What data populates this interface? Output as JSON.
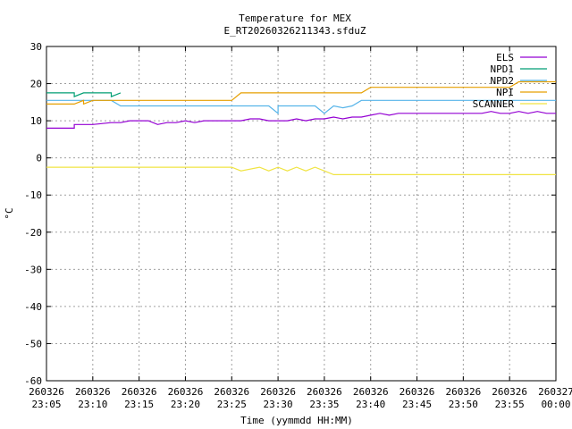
{
  "chart_data": {
    "type": "line",
    "title": "Temperature for MEX",
    "subtitle": "E_RT20260326211343.sfduZ",
    "xlabel": "Time (yymmdd HH:MM)",
    "ylabel": "°C",
    "ylim": [
      -60,
      30
    ],
    "xlim": [
      "2026-03-26 23:05",
      "2026-03-27 00:00"
    ],
    "yticks": [
      -60,
      -50,
      -40,
      -30,
      -20,
      -10,
      0,
      10,
      20,
      30
    ],
    "xticks": [
      {
        "date": "260326",
        "time": "23:05"
      },
      {
        "date": "260326",
        "time": "23:10"
      },
      {
        "date": "260326",
        "time": "23:15"
      },
      {
        "date": "260326",
        "time": "23:20"
      },
      {
        "date": "260326",
        "time": "23:25"
      },
      {
        "date": "260326",
        "time": "23:30"
      },
      {
        "date": "260326",
        "time": "23:35"
      },
      {
        "date": "260326",
        "time": "23:40"
      },
      {
        "date": "260326",
        "time": "23:45"
      },
      {
        "date": "260326",
        "time": "23:50"
      },
      {
        "date": "260326",
        "time": "23:55"
      },
      {
        "date": "260327",
        "time": "00:00"
      }
    ],
    "grid": true,
    "legend_position": "top-right",
    "series": [
      {
        "name": "ELS",
        "color": "#9400d3",
        "x": [
          "23:05",
          "23:08",
          "23:08",
          "23:09",
          "23:10",
          "23:12",
          "23:13",
          "23:14",
          "23:15",
          "23:16",
          "23:17",
          "23:18",
          "23:19",
          "23:20",
          "23:21",
          "23:22",
          "23:23",
          "23:24",
          "23:25",
          "23:26",
          "23:27",
          "23:28",
          "23:29",
          "23:30",
          "23:31",
          "23:32",
          "23:33",
          "23:34",
          "23:35",
          "23:36",
          "23:37",
          "23:38",
          "23:39",
          "23:40",
          "23:41",
          "23:42",
          "23:43",
          "23:44",
          "23:45",
          "23:46",
          "23:47",
          "23:48",
          "23:49",
          "23:50",
          "23:51",
          "23:52",
          "23:53",
          "23:54",
          "23:55",
          "23:56",
          "23:57",
          "23:58",
          "23:59",
          "00:00"
        ],
        "y": [
          8,
          8,
          9,
          9,
          9,
          9.5,
          9.5,
          10,
          10,
          10,
          9,
          9.5,
          9.5,
          10,
          9.5,
          10,
          10,
          10,
          10,
          10,
          10.5,
          10.5,
          10,
          10,
          10,
          10.5,
          10,
          10.5,
          10.5,
          11,
          10.5,
          11,
          11,
          11.5,
          12,
          11.5,
          12,
          12,
          12,
          12,
          12,
          12,
          12,
          12,
          12,
          12,
          12.5,
          12,
          12,
          12.5,
          12,
          12.5,
          12,
          12
        ]
      },
      {
        "name": "NPD1",
        "color": "#009e73",
        "x": [
          "23:05",
          "23:08",
          "23:08",
          "23:09",
          "23:10",
          "23:12",
          "23:12",
          "23:13"
        ],
        "y": [
          17.5,
          17.5,
          16.5,
          17.5,
          17.5,
          17.5,
          16.5,
          17.5
        ]
      },
      {
        "name": "NPD2",
        "color": "#56b4e9",
        "x": [
          "23:05",
          "23:12",
          "23:13",
          "23:14",
          "23:29",
          "23:30",
          "23:30",
          "23:34",
          "23:35",
          "23:36",
          "23:37",
          "23:38",
          "23:39",
          "00:00"
        ],
        "y": [
          15.5,
          15.5,
          14,
          14,
          14,
          12,
          14,
          14,
          12,
          14,
          13.5,
          14,
          15.5,
          15.5
        ]
      },
      {
        "name": "NPI",
        "color": "#e69f00",
        "x": [
          "23:05",
          "23:08",
          "23:09",
          "23:09",
          "23:10",
          "23:25",
          "23:26",
          "23:39",
          "23:40",
          "23:55",
          "23:56",
          "23:57",
          "00:00"
        ],
        "y": [
          14.5,
          14.5,
          15.5,
          14.5,
          15.5,
          15.5,
          17.5,
          17.5,
          19,
          19,
          20.5,
          20.5,
          20.5
        ]
      },
      {
        "name": "SCANNER",
        "color": "#f0e442",
        "x": [
          "23:05",
          "23:25",
          "23:26",
          "23:28",
          "23:29",
          "23:30",
          "23:31",
          "23:32",
          "23:33",
          "23:34",
          "23:35",
          "23:36",
          "00:00"
        ],
        "y": [
          -2.5,
          -2.5,
          -3.5,
          -2.5,
          -3.5,
          -2.5,
          -3.5,
          -2.5,
          -3.5,
          -2.5,
          -3.5,
          -4.5,
          -4.5
        ]
      }
    ]
  }
}
